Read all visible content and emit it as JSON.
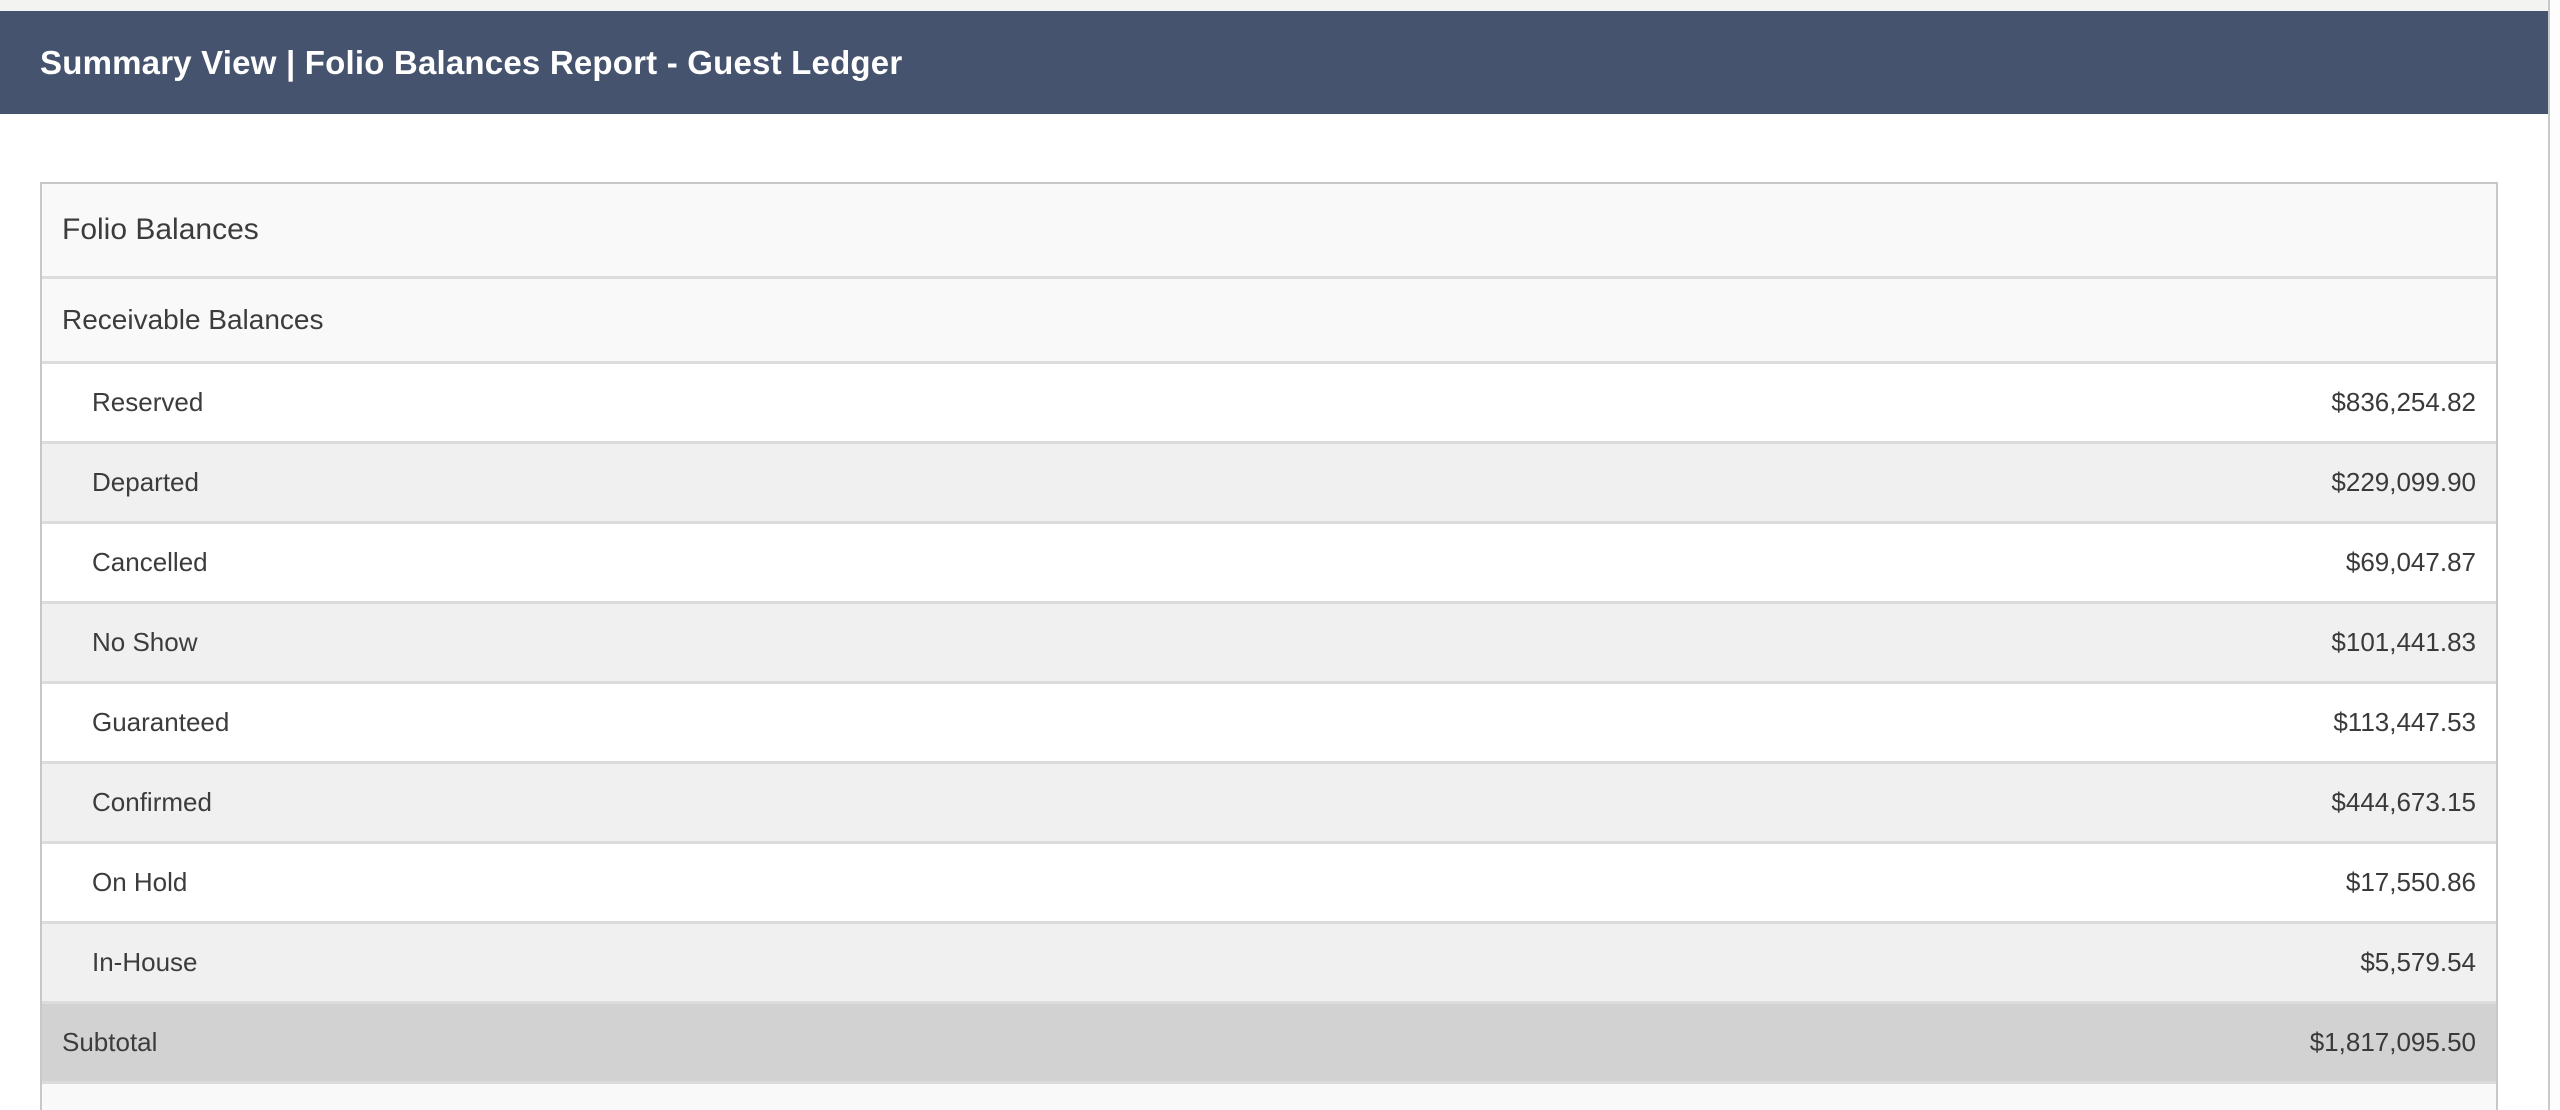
{
  "header": {
    "title": "Summary View | Folio Balances Report - Guest Ledger",
    "background": "#46536f",
    "text_color": "#ffffff"
  },
  "report": {
    "section_title": "Folio Balances",
    "group_title": "Receivable Balances",
    "rows": [
      {
        "label": "Reserved",
        "value": "$836,254.82"
      },
      {
        "label": "Departed",
        "value": "$229,099.90"
      },
      {
        "label": "Cancelled",
        "value": "$69,047.87"
      },
      {
        "label": "No Show",
        "value": "$101,441.83"
      },
      {
        "label": "Guaranteed",
        "value": "$113,447.53"
      },
      {
        "label": "Confirmed",
        "value": "$444,673.15"
      },
      {
        "label": "On Hold",
        "value": "$17,550.86"
      },
      {
        "label": "In-House",
        "value": "$5,579.54"
      }
    ],
    "subtotal": {
      "label": "Subtotal",
      "value": "$1,817,095.50"
    },
    "colors": {
      "row_alt": "#f0f0f0",
      "section_header_bg": "#f9f9f9",
      "subtotal_bg": "#d2d2d2",
      "panel_border": "#c8c8c8",
      "row_divider": "#dcdcdc"
    }
  }
}
